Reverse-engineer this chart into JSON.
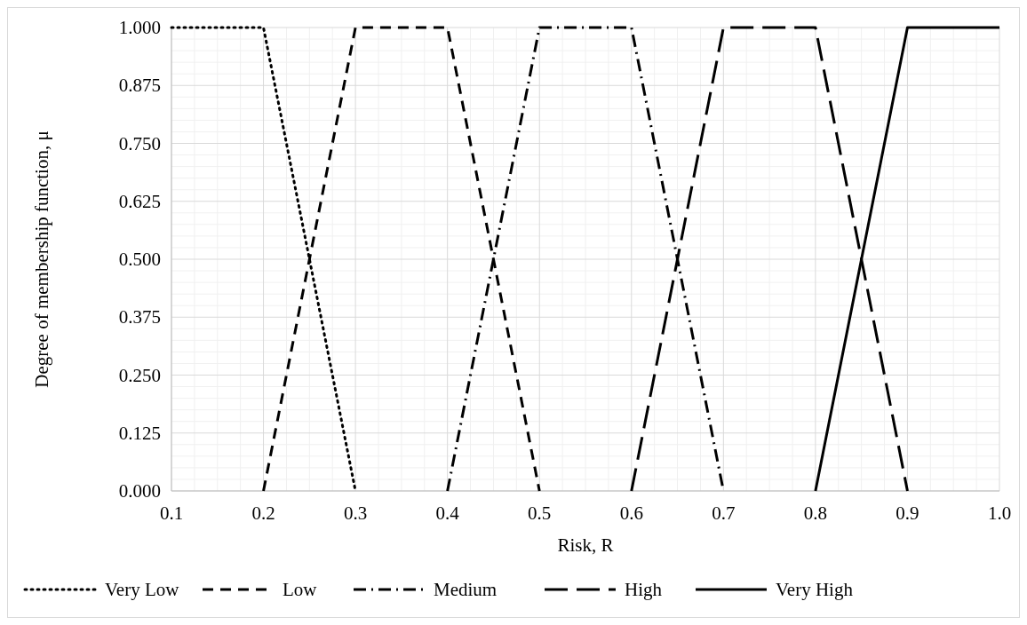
{
  "chart_data": {
    "type": "line",
    "xlabel": "Risk, R",
    "ylabel": "Degree of membership function, μ",
    "xlim": [
      0.1,
      1.0
    ],
    "xticks": [
      0.1,
      0.2,
      0.3,
      0.4,
      0.5,
      0.6,
      0.7,
      0.8,
      0.9,
      {
        "value": 1,
        "label": "1.0"
      }
    ],
    "ylim": [
      0,
      1
    ],
    "yticks": [
      {
        "value": 0,
        "label": "0.000"
      },
      {
        "value": 0.125,
        "label": "0.125"
      },
      {
        "value": 0.25,
        "label": "0.250"
      },
      {
        "value": 0.375,
        "label": "0.375"
      },
      {
        "value": 0.5,
        "label": "0.500"
      },
      {
        "value": 0.625,
        "label": "0.625"
      },
      {
        "value": 0.75,
        "label": "0.750"
      },
      {
        "value": 0.875,
        "label": "0.875"
      },
      {
        "value": 1,
        "label": "1.000"
      }
    ],
    "grid": true,
    "legend": "bottom",
    "marker": "none",
    "series": [
      {
        "name": "Very Low",
        "color": "#000000",
        "line_style": "dotted",
        "x": [
          0.1,
          0.2,
          0.3
        ],
        "values": [
          1,
          1,
          0
        ]
      },
      {
        "name": "Low",
        "color": "#000000",
        "line_style": "dashed",
        "x": [
          0.2,
          0.3,
          0.4,
          0.5
        ],
        "values": [
          0,
          1,
          1,
          0
        ]
      },
      {
        "name": "Medium",
        "color": "#000000",
        "line_style": "dashed",
        "x": [
          0.4,
          0.5,
          0.6,
          0.7
        ],
        "values": [
          0,
          1,
          1,
          0
        ]
      },
      {
        "name": "High",
        "color": "#000000",
        "line_style": "dashed",
        "x": [
          0.6,
          0.7,
          0.8,
          0.9
        ],
        "values": [
          0,
          1,
          1,
          0
        ]
      },
      {
        "name": "Very High",
        "color": "#000000",
        "line_style": "solid",
        "x": [
          0.8,
          0.9,
          1.0
        ],
        "values": [
          0,
          1,
          1
        ]
      }
    ]
  }
}
